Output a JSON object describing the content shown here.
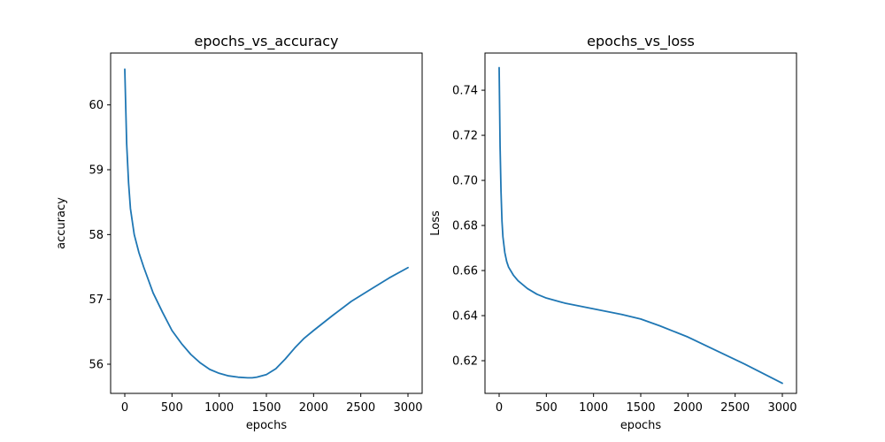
{
  "colors": {
    "series": "#1f77b4"
  },
  "chart_data": [
    {
      "type": "line",
      "title": "epochs_vs_accuracy",
      "xlabel": "epochs",
      "ylabel": "accuracy",
      "xlim": [
        -150,
        3150
      ],
      "ylim": [
        55.55,
        60.8
      ],
      "xticks": [
        {
          "value": 0,
          "label": "0"
        },
        {
          "value": 500,
          "label": "500"
        },
        {
          "value": 1000,
          "label": "1000"
        },
        {
          "value": 1500,
          "label": "1500"
        },
        {
          "value": 2000,
          "label": "2000"
        },
        {
          "value": 2500,
          "label": "2500"
        },
        {
          "value": 3000,
          "label": "3000"
        }
      ],
      "yticks": [
        {
          "value": 56,
          "label": "56"
        },
        {
          "value": 57,
          "label": "57"
        },
        {
          "value": 58,
          "label": "58"
        },
        {
          "value": 59,
          "label": "59"
        },
        {
          "value": 60,
          "label": "60"
        }
      ],
      "series": [
        {
          "x": [
            0,
            20,
            40,
            60,
            100,
            150,
            200,
            300,
            400,
            500,
            600,
            700,
            800,
            900,
            1000,
            1100,
            1200,
            1300,
            1350,
            1400,
            1500,
            1600,
            1700,
            1800,
            1900,
            2000,
            2200,
            2400,
            2600,
            2800,
            3000
          ],
          "y": [
            60.55,
            59.4,
            58.8,
            58.4,
            58.0,
            57.72,
            57.5,
            57.1,
            56.8,
            56.52,
            56.32,
            56.15,
            56.02,
            55.92,
            55.86,
            55.82,
            55.8,
            55.79,
            55.79,
            55.8,
            55.84,
            55.93,
            56.08,
            56.25,
            56.4,
            56.52,
            56.75,
            56.97,
            57.15,
            57.33,
            57.49
          ]
        }
      ]
    },
    {
      "type": "line",
      "title": "epochs_vs_loss",
      "xlabel": "epochs",
      "ylabel": "Loss",
      "xlim": [
        -150,
        3150
      ],
      "ylim": [
        0.6055,
        0.7565
      ],
      "xticks": [
        {
          "value": 0,
          "label": "0"
        },
        {
          "value": 500,
          "label": "500"
        },
        {
          "value": 1000,
          "label": "1000"
        },
        {
          "value": 1500,
          "label": "1500"
        },
        {
          "value": 2000,
          "label": "2000"
        },
        {
          "value": 2500,
          "label": "2500"
        },
        {
          "value": 3000,
          "label": "3000"
        }
      ],
      "yticks": [
        {
          "value": 0.62,
          "label": "0.62"
        },
        {
          "value": 0.64,
          "label": "0.64"
        },
        {
          "value": 0.66,
          "label": "0.66"
        },
        {
          "value": 0.68,
          "label": "0.68"
        },
        {
          "value": 0.7,
          "label": "0.70"
        },
        {
          "value": 0.72,
          "label": "0.72"
        },
        {
          "value": 0.74,
          "label": "0.74"
        }
      ],
      "series": [
        {
          "x": [
            0,
            10,
            20,
            30,
            40,
            60,
            80,
            100,
            150,
            200,
            300,
            400,
            500,
            700,
            1000,
            1300,
            1500,
            1700,
            2000,
            2300,
            2600,
            3000
          ],
          "y": [
            0.75,
            0.715,
            0.695,
            0.682,
            0.675,
            0.668,
            0.664,
            0.6615,
            0.658,
            0.6555,
            0.652,
            0.6495,
            0.6478,
            0.6455,
            0.643,
            0.6405,
            0.6385,
            0.6355,
            0.6305,
            0.6245,
            0.6185,
            0.61
          ]
        }
      ]
    }
  ]
}
